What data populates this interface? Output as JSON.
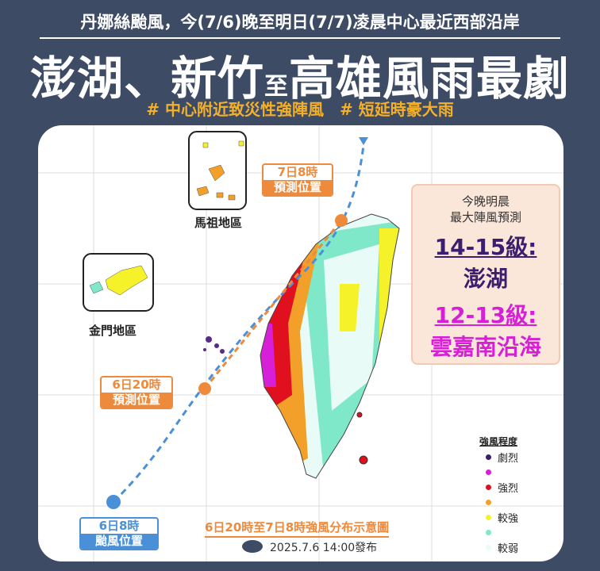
{
  "header": {
    "subtitle": "丹娜絲颱風，今(7/6)晚至明日(7/7)凌晨中心最近西部沿岸",
    "title_a": "澎湖、新竹",
    "title_mid": "至",
    "title_b": "高雄風雨最劇",
    "tags": [
      "# 中心附近致災性強陣風",
      "# 短延時豪大雨"
    ]
  },
  "map": {
    "matsu_label": "馬祖地區",
    "kinmen_label": "金門地區",
    "track_points": [
      {
        "day": "7日8時",
        "note": "預測位置"
      },
      {
        "day": "6日20時",
        "note": "預測位置"
      },
      {
        "day": "6日8時",
        "note": "颱風位置"
      }
    ],
    "caption": "6日20時至7日8時強風分布示意圖",
    "published": "2025.7.6  14:00發布"
  },
  "info": {
    "title1": "今晚明晨",
    "title2": "最大陣風預測",
    "level1": "14-15級:",
    "place1": "澎湖",
    "level2": "12-13級:",
    "place2": "雲嘉南沿海",
    "color1": "#3b1f6e",
    "color2": "#d61fd6"
  },
  "legend": {
    "title": "強風程度",
    "items": [
      {
        "label": "劇烈",
        "color": "#3b1f6e"
      },
      {
        "label": "",
        "color": "#d61fd6"
      },
      {
        "label": "強烈",
        "color": "#e0101f"
      },
      {
        "label": "",
        "color": "#f2a02a"
      },
      {
        "label": "較強",
        "color": "#f6f22a"
      },
      {
        "label": "",
        "color": "#7ee8c8"
      },
      {
        "label": "較弱",
        "color": "#e8fbf6"
      }
    ]
  }
}
